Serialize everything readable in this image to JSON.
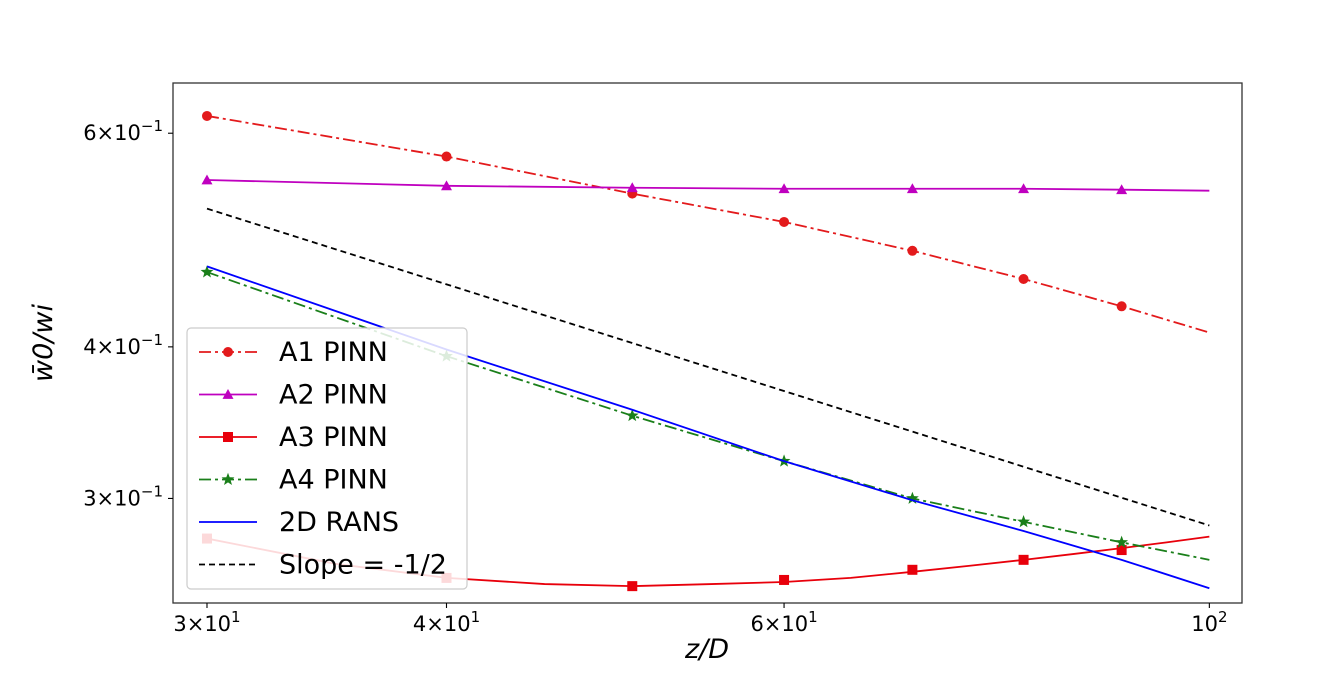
{
  "chart_data": {
    "type": "line",
    "title": "",
    "xlabel": "z/D",
    "ylabel": "w̄0/wi",
    "xscale": "log",
    "yscale": "log",
    "xlim": [
      28.8,
      104
    ],
    "ylim": [
      0.246,
      0.66
    ],
    "grid": false,
    "legend_position": "lower-left",
    "x_ticks": [
      {
        "value": 30,
        "mantissa": "3",
        "exp": "1"
      },
      {
        "value": 40,
        "mantissa": "4",
        "exp": "1"
      },
      {
        "value": 60,
        "mantissa": "6",
        "exp": "1"
      },
      {
        "value": 100,
        "mantissa": "",
        "exp": "2"
      }
    ],
    "y_ticks": [
      {
        "value": 0.6,
        "mantissa": "6",
        "exp": "−1"
      },
      {
        "value": 0.4,
        "mantissa": "4",
        "exp": "−1"
      },
      {
        "value": 0.3,
        "mantissa": "3",
        "exp": "−1"
      }
    ],
    "series": [
      {
        "name": "A1 PINN",
        "color": "#e31a1c",
        "linestyle": "dashdot",
        "marker": "circle",
        "line_x": [
          30,
          40,
          50,
          60,
          70,
          80,
          90,
          100
        ],
        "line_y": [
          0.62,
          0.574,
          0.535,
          0.507,
          0.48,
          0.455,
          0.432,
          0.411
        ],
        "marker_x": [
          30,
          40,
          50,
          60,
          70,
          80,
          90
        ],
        "marker_y": [
          0.62,
          0.574,
          0.535,
          0.507,
          0.48,
          0.455,
          0.432
        ]
      },
      {
        "name": "A2 PINN",
        "color": "#bf00bf",
        "linestyle": "solid",
        "marker": "triangle",
        "line_x": [
          30,
          40,
          50,
          60,
          70,
          80,
          90,
          100
        ],
        "line_y": [
          0.549,
          0.543,
          0.541,
          0.54,
          0.54,
          0.54,
          0.539,
          0.538
        ],
        "marker_x": [
          30,
          40,
          50,
          60,
          70,
          80,
          90
        ],
        "marker_y": [
          0.549,
          0.543,
          0.541,
          0.54,
          0.54,
          0.54,
          0.539
        ]
      },
      {
        "name": "A3 PINN",
        "color": "#e8000b",
        "linestyle": "solid",
        "marker": "square",
        "line_x": [
          30,
          35,
          40,
          45,
          50,
          55,
          60,
          65,
          70,
          75,
          80,
          85,
          90,
          95,
          100
        ],
        "line_y": [
          0.278,
          0.265,
          0.258,
          0.255,
          0.254,
          0.255,
          0.256,
          0.258,
          0.261,
          0.264,
          0.267,
          0.27,
          0.273,
          0.276,
          0.279
        ],
        "marker_x": [
          30,
          40,
          50,
          60,
          70,
          80,
          90
        ],
        "marker_y": [
          0.278,
          0.258,
          0.254,
          0.257,
          0.262,
          0.267,
          0.272
        ]
      },
      {
        "name": "A4 PINN",
        "color": "#1a7f1a",
        "linestyle": "dashdot",
        "marker": "star",
        "line_x": [
          30,
          40,
          50,
          60,
          70,
          80,
          90,
          100
        ],
        "line_y": [
          0.461,
          0.393,
          0.351,
          0.322,
          0.3,
          0.287,
          0.276,
          0.267
        ],
        "marker_x": [
          30,
          40,
          50,
          60,
          70,
          80,
          90
        ],
        "marker_y": [
          0.461,
          0.393,
          0.351,
          0.322,
          0.3,
          0.287,
          0.276
        ]
      },
      {
        "name": "2D RANS",
        "color": "#0000ff",
        "linestyle": "solid",
        "marker": "none",
        "line_x": [
          30,
          40,
          50,
          60,
          70,
          80,
          90,
          100
        ],
        "line_y": [
          0.466,
          0.398,
          0.355,
          0.322,
          0.299,
          0.282,
          0.267,
          0.253
        ],
        "marker_x": [],
        "marker_y": []
      },
      {
        "name": "Slope = -1/2",
        "color": "#000000",
        "linestyle": "dashed",
        "marker": "none",
        "line_x": [
          30,
          100
        ],
        "line_y": [
          0.52,
          0.285
        ],
        "marker_x": [],
        "marker_y": []
      }
    ]
  }
}
